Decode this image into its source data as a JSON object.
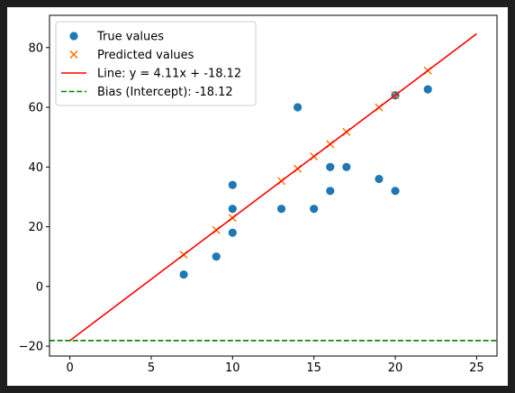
{
  "colors": {
    "background": "#1e1e1e",
    "figure": "#ffffff",
    "true_values": "#1f77b4",
    "predicted_values": "#ff7f0e",
    "line": "#ff0000",
    "bias": "#008000"
  },
  "chart_data": {
    "type": "scatter",
    "title": "",
    "xlabel": "",
    "ylabel": "",
    "xlim": [
      -1.25,
      26.25
    ],
    "ylim": [
      -23.3,
      90.8
    ],
    "x_ticks": [
      0,
      5,
      10,
      15,
      20,
      25
    ],
    "y_ticks": [
      -20,
      0,
      20,
      40,
      60,
      80
    ],
    "grid": false,
    "legend_position": "top-left",
    "series": [
      {
        "name": "True values",
        "type": "scatter",
        "marker": "circle",
        "color": "#1f77b4",
        "x": [
          7,
          9,
          10,
          10,
          10,
          13,
          14,
          15,
          16,
          16,
          17,
          19,
          20,
          20,
          22
        ],
        "y": [
          4,
          10,
          18,
          26,
          34,
          26,
          60,
          26,
          32,
          40,
          40,
          36,
          32,
          64,
          66
        ]
      },
      {
        "name": "Predicted values",
        "type": "scatter",
        "marker": "x",
        "color": "#ff7f0e",
        "x": [
          7,
          9,
          10,
          13,
          14,
          15,
          16,
          17,
          19,
          20,
          22
        ],
        "y": [
          10.65,
          18.87,
          22.98,
          35.31,
          39.42,
          43.53,
          47.64,
          51.75,
          59.97,
          64.08,
          72.3
        ]
      },
      {
        "name": "Line: y = 4.11x + -18.12",
        "type": "line",
        "style": "solid",
        "color": "#ff0000",
        "x": [
          0,
          25
        ],
        "y": [
          -18.12,
          84.63
        ]
      },
      {
        "name": "Bias (Intercept): -18.12",
        "type": "hline",
        "style": "dashed",
        "color": "#008000",
        "y": -18.12
      }
    ]
  }
}
